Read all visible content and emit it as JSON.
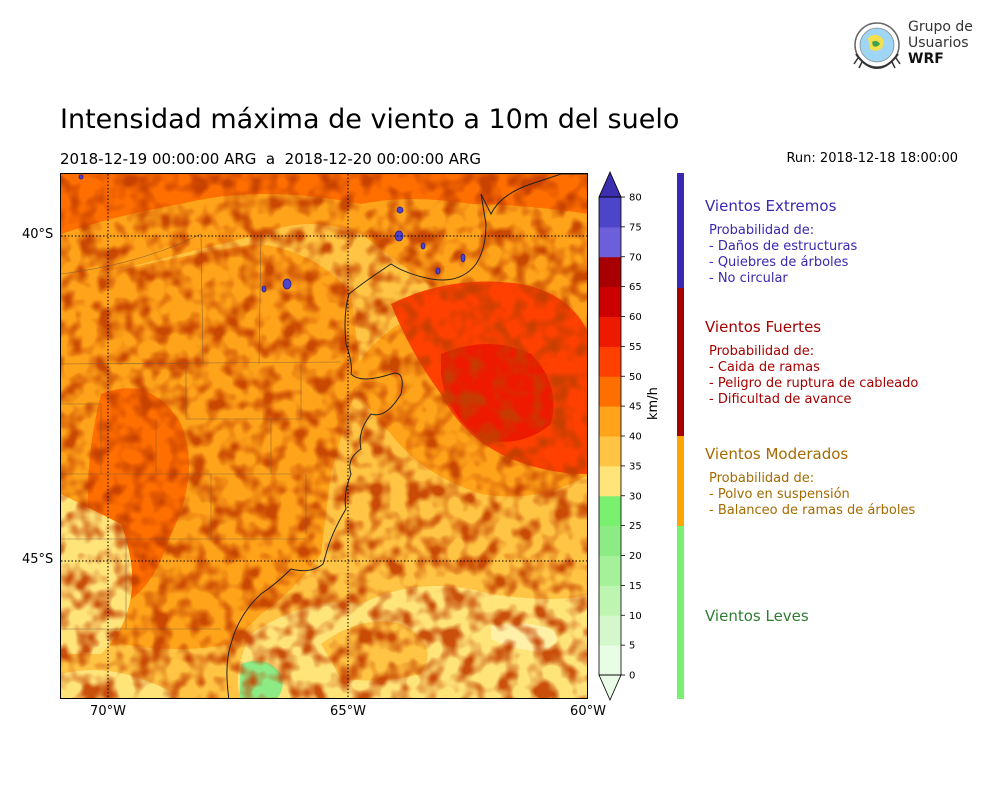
{
  "header": {
    "title": "Intensidad máxima de viento a 10m del suelo",
    "period": "2018-12-19 00:00:00 ARG  a  2018-12-20 00:00:00 ARG",
    "run": "Run: 2018-12-18 18:00:00"
  },
  "logo": {
    "line1": "Grupo de",
    "line2": "Usuarios",
    "line3": "WRF"
  },
  "map": {
    "lat_labels": [
      "40°S",
      "45°S"
    ],
    "lon_labels": [
      "70°W",
      "65°W",
      "60°W"
    ],
    "region": "Patagonia / Buenos Aires, Argentina"
  },
  "colorbar": {
    "unit": "km/h",
    "ticks": [
      "0",
      "5",
      "10",
      "15",
      "20",
      "25",
      "30",
      "35",
      "40",
      "45",
      "50",
      "55",
      "60",
      "65",
      "70",
      "75",
      "80"
    ],
    "colors": [
      "#e9fce5",
      "#d4f8cc",
      "#bff5b2",
      "#a5f19a",
      "#8deb85",
      "#79f06f",
      "#ffe47a",
      "#ffc443",
      "#ffa31a",
      "#ff6f00",
      "#ff4000",
      "#ee1a00",
      "#cc0000",
      "#a80000",
      "#6d5fd9",
      "#4c44c9",
      "#3b2fb0"
    ],
    "extend": "both"
  },
  "categories": [
    {
      "title": "Vientos Extremos",
      "color": "#3a28b0",
      "bar_color": "#3a28b0",
      "lines": [
        "Probabilidad de:",
        "- Daños de estructuras",
        "- Quiebres de árboles",
        "- No circular"
      ]
    },
    {
      "title": "Vientos Fuertes",
      "color": "#a50000",
      "bar_color": "#a50000",
      "lines": [
        "Probabilidad de:",
        "- Caida de ramas",
        "- Peligro de ruptura de cableado",
        "- Dificultad de avance"
      ]
    },
    {
      "title": "Vientos Moderados",
      "color": "#a66a00",
      "bar_color": "#ffa500",
      "lines": [
        "Probabilidad de:",
        "- Polvo en suspensión",
        "- Balanceo de ramas de árboles"
      ]
    },
    {
      "title": "Vientos Leves",
      "color": "#2e7d32",
      "bar_color": "#79f06f",
      "lines": []
    }
  ]
}
